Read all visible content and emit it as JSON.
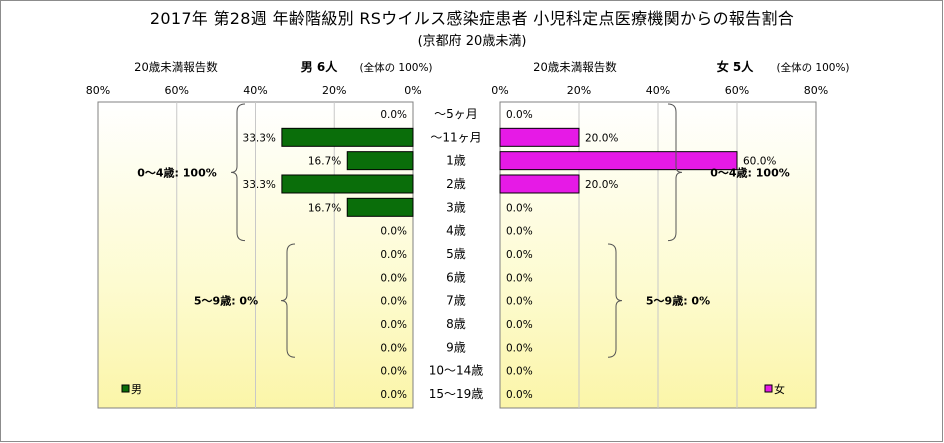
{
  "title": "2017年 第28週 年齢階級別 RSウイルス感染症患者 小児科定点医療機関からの報告割合",
  "subtitle": "(京都府 20歳未満)",
  "chart_data": {
    "type": "bar",
    "orientation": "horizontal",
    "categories": [
      "～5ヶ月",
      "～11ヶ月",
      "1歳",
      "2歳",
      "3歳",
      "4歳",
      "5歳",
      "6歳",
      "7歳",
      "8歳",
      "9歳",
      "10～14歳",
      "15～19歳"
    ],
    "panels": [
      {
        "id": "male",
        "side": "left",
        "header_left": "20歳未満報告数",
        "header_right": "男 6人",
        "header_note": "(全体の 100%)",
        "ticks": [
          "80%",
          "60%",
          "40%",
          "20%",
          "0%"
        ],
        "xlim": [
          0,
          80
        ],
        "reversed": true,
        "color": "#0a6e0a",
        "legend_label": "男",
        "legend_color": "#0a6e0a",
        "values": [
          0.0,
          33.3,
          16.7,
          33.3,
          16.7,
          0.0,
          0.0,
          0.0,
          0.0,
          0.0,
          0.0,
          0.0,
          0.0
        ],
        "labels": [
          "0.0%",
          "33.3%",
          "16.7%",
          "33.3%",
          "16.7%",
          "0.0%",
          "0.0%",
          "0.0%",
          "0.0%",
          "0.0%",
          "0.0%",
          "0.0%",
          "0.0%"
        ],
        "brackets": [
          {
            "text": "0～4歳: 100%",
            "from": 0,
            "to": 5
          },
          {
            "text": "5～9歳: 0%",
            "from": 6,
            "to": 10
          }
        ]
      },
      {
        "id": "female",
        "side": "right",
        "header_left": "20歳未満報告数",
        "header_right": "女 5人",
        "header_note": "(全体の 100%)",
        "ticks": [
          "0%",
          "20%",
          "40%",
          "60%",
          "80%"
        ],
        "xlim": [
          0,
          80
        ],
        "reversed": false,
        "color": "#e61ae6",
        "legend_label": "女",
        "legend_color": "#e61ae6",
        "values": [
          0.0,
          20.0,
          60.0,
          20.0,
          0.0,
          0.0,
          0.0,
          0.0,
          0.0,
          0.0,
          0.0,
          0.0,
          0.0
        ],
        "labels": [
          "0.0%",
          "20.0%",
          "60.0%",
          "20.0%",
          "0.0%",
          "0.0%",
          "0.0%",
          "0.0%",
          "0.0%",
          "0.0%",
          "0.0%",
          "0.0%",
          "0.0%"
        ],
        "brackets": [
          {
            "text": "0～4歳: 100%",
            "from": 0,
            "to": 5
          },
          {
            "text": "5～9歳: 0%",
            "from": 6,
            "to": 10
          }
        ]
      }
    ],
    "grid": true,
    "background": "vertical gradient white to light yellow"
  }
}
